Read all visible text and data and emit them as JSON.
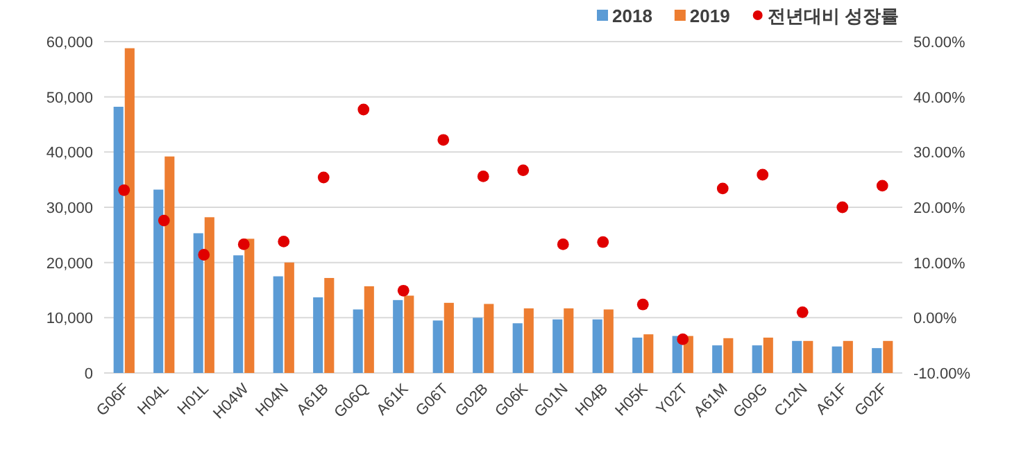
{
  "chart_data": {
    "type": "bar",
    "categories": [
      "G06F",
      "H04L",
      "H01L",
      "H04W",
      "H04N",
      "A61B",
      "G06Q",
      "A61K",
      "G06T",
      "G02B",
      "G06K",
      "G01N",
      "H04B",
      "H05K",
      "Y02T",
      "A61M",
      "G09G",
      "C12N",
      "A61F",
      "G02F"
    ],
    "series": [
      {
        "name": "2018",
        "color": "#5b9bd5",
        "values": [
          48200,
          33200,
          25300,
          21300,
          17500,
          13700,
          11500,
          13200,
          9500,
          10000,
          9000,
          9700,
          9700,
          6400,
          6700,
          5000,
          5000,
          5800,
          4800,
          4500
        ]
      },
      {
        "name": "2019",
        "color": "#ed7d31",
        "values": [
          58800,
          39200,
          28200,
          24300,
          20000,
          17200,
          15700,
          14000,
          12700,
          12500,
          11700,
          11700,
          11500,
          7000,
          6700,
          6300,
          6400,
          5800,
          5800,
          5800
        ]
      },
      {
        "name": "전년대비 성장률",
        "type": "scatter",
        "axis": "y2",
        "color": "#e00000",
        "values": [
          23.1,
          17.6,
          11.4,
          13.3,
          13.8,
          25.4,
          37.7,
          4.9,
          32.2,
          25.6,
          26.7,
          13.3,
          13.7,
          2.4,
          -3.9,
          23.4,
          25.9,
          1.0,
          20.0,
          23.9
        ]
      }
    ],
    "ylim": [
      0,
      60000
    ],
    "yticks": [
      {
        "value": 0,
        "label": "0"
      },
      {
        "value": 10000,
        "label": "10,000"
      },
      {
        "value": 20000,
        "label": "20,000"
      },
      {
        "value": 30000,
        "label": "30,000"
      },
      {
        "value": 40000,
        "label": "40,000"
      },
      {
        "value": 50000,
        "label": "50,000"
      },
      {
        "value": 60000,
        "label": "60,000"
      }
    ],
    "y2lim": [
      -10,
      50
    ],
    "y2ticks": [
      {
        "value": -10,
        "label": "-10.00%"
      },
      {
        "value": 0,
        "label": "0.00%"
      },
      {
        "value": 10,
        "label": "10.00%"
      },
      {
        "value": 20,
        "label": "20.00%"
      },
      {
        "value": 30,
        "label": "30.00%"
      },
      {
        "value": 40,
        "label": "40.00%"
      },
      {
        "value": 50,
        "label": "50.00%"
      }
    ],
    "grid": "y",
    "legend": "top right",
    "marker": "circle"
  }
}
